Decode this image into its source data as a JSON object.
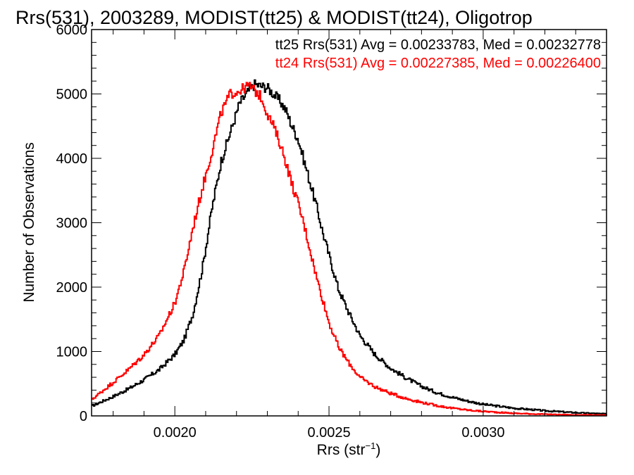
{
  "chart_data": {
    "type": "line",
    "step": true,
    "title": "Rrs(531), 2003289, MODIST(tt25) & MODIST(tt24), Oligotrop",
    "xlabel": {
      "base": "Rrs (str",
      "sup": "−1",
      "end": ")"
    },
    "ylabel": "Number of Observations",
    "xlim": [
      0.00173,
      0.0034
    ],
    "ylim": [
      0,
      6000
    ],
    "xticks": [
      0.002,
      0.0025,
      0.003
    ],
    "xtick_labels": [
      "0.0020",
      "0.0025",
      "0.0030"
    ],
    "xminor_step": 0.0001,
    "yticks": [
      0,
      1000,
      2000,
      3000,
      4000,
      5000,
      6000
    ],
    "ytick_labels": [
      "0",
      "1000",
      "2000",
      "3000",
      "4000",
      "5000",
      "6000"
    ],
    "yminor_step": 200,
    "grid": false,
    "legend_position": "top-right",
    "series": [
      {
        "legend": "tt25 Rrs(531) Avg = 0.00233783, Med = 0.00232778",
        "color": "#000000",
        "x": [
          0.00173,
          0.0018,
          0.00185,
          0.0019,
          0.00195,
          0.002,
          0.00203,
          0.00206,
          0.00209,
          0.00212,
          0.00215,
          0.00218,
          0.00221,
          0.00224,
          0.00226,
          0.00228,
          0.0023,
          0.00232,
          0.00234,
          0.00236,
          0.00238,
          0.0024,
          0.00242,
          0.00244,
          0.00246,
          0.00248,
          0.0025,
          0.00253,
          0.00256,
          0.0026,
          0.00265,
          0.0027,
          0.00275,
          0.0028,
          0.00285,
          0.0029,
          0.00295,
          0.003,
          0.0031,
          0.0032,
          0.0033,
          0.0034
        ],
        "y": [
          150,
          300,
          420,
          560,
          720,
          950,
          1180,
          1600,
          2300,
          3200,
          3950,
          4400,
          4850,
          5050,
          5150,
          5120,
          5100,
          5000,
          4900,
          4750,
          4500,
          4300,
          3950,
          3600,
          3250,
          2850,
          2500,
          1980,
          1650,
          1250,
          950,
          740,
          590,
          460,
          360,
          290,
          230,
          180,
          120,
          80,
          50,
          30
        ]
      },
      {
        "legend": "tt24 Rrs(531) Avg = 0.00227385, Med = 0.00226400",
        "color": "#ff0000",
        "x": [
          0.00173,
          0.0018,
          0.00185,
          0.0019,
          0.00195,
          0.002,
          0.00203,
          0.00206,
          0.00209,
          0.00212,
          0.00215,
          0.00218,
          0.00221,
          0.00224,
          0.00226,
          0.00228,
          0.0023,
          0.00232,
          0.00234,
          0.00236,
          0.00238,
          0.0024,
          0.00242,
          0.00244,
          0.00246,
          0.00248,
          0.0025,
          0.00253,
          0.00256,
          0.0026,
          0.00265,
          0.0027,
          0.00275,
          0.0028,
          0.00285,
          0.0029,
          0.00295,
          0.003,
          0.0031,
          0.0032,
          0.0033,
          0.0034
        ],
        "y": [
          250,
          520,
          720,
          950,
          1250,
          1750,
          2250,
          2950,
          3550,
          4100,
          4700,
          5000,
          5050,
          5130,
          5050,
          4950,
          4700,
          4500,
          4250,
          3950,
          3600,
          3300,
          2950,
          2550,
          2150,
          1800,
          1450,
          1080,
          850,
          600,
          450,
          350,
          270,
          210,
          160,
          120,
          90,
          70,
          40,
          25,
          15,
          10
        ]
      }
    ]
  }
}
